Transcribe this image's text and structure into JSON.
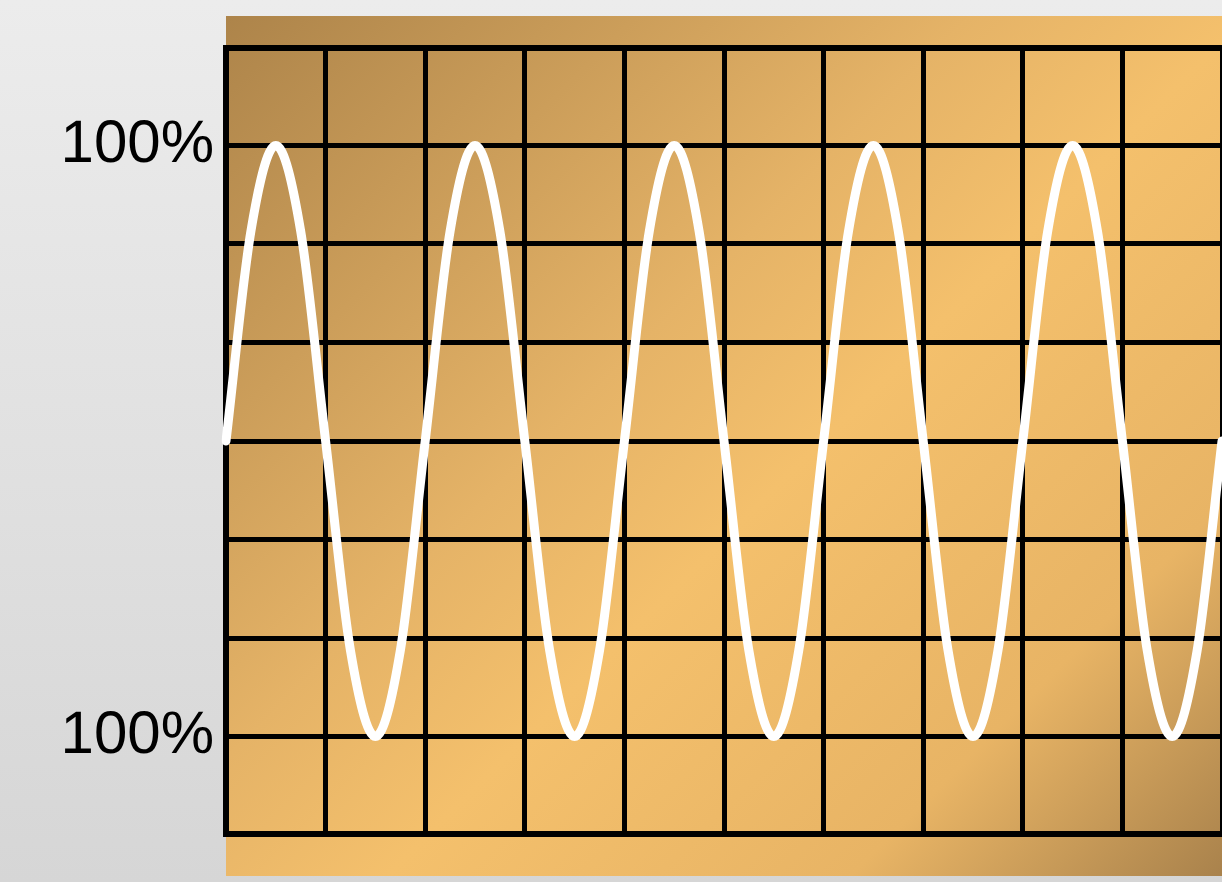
{
  "chart_data": {
    "type": "line",
    "categories": [
      null,
      null,
      null,
      null,
      null,
      null,
      null,
      null,
      null,
      null,
      null,
      null,
      null,
      null,
      null,
      null,
      null,
      null,
      null,
      null,
      null,
      null,
      null,
      null,
      null,
      null,
      null,
      null,
      null,
      null,
      null,
      null,
      null,
      null,
      null,
      null,
      null,
      null,
      null,
      null,
      null
    ],
    "series": [
      {
        "color": "#ffffff",
        "values": [
          0,
          71,
          100,
          71,
          0,
          -71,
          -100,
          -71,
          0,
          71,
          100,
          71,
          0,
          -71,
          -100,
          -71,
          0,
          71,
          100,
          71,
          0,
          -71,
          -100,
          -71,
          0,
          71,
          100,
          71,
          0,
          -71,
          -100,
          -71,
          0,
          71,
          100,
          71,
          0,
          -71,
          -100,
          -71,
          0
        ]
      }
    ],
    "ylim": [
      -133,
      133
    ],
    "yticks": [
      {
        "value": -100,
        "label": "100%"
      },
      {
        "value": -66.7,
        "label": null
      },
      {
        "value": -33.3,
        "label": null
      },
      {
        "value": 0,
        "label": null
      },
      {
        "value": 33.3,
        "label": null
      },
      {
        "value": 66.7,
        "label": null
      },
      {
        "value": 100,
        "label": "100%"
      }
    ],
    "grid": true,
    "tick_labels": "y",
    "marker": "none",
    "line_style": "solid"
  }
}
